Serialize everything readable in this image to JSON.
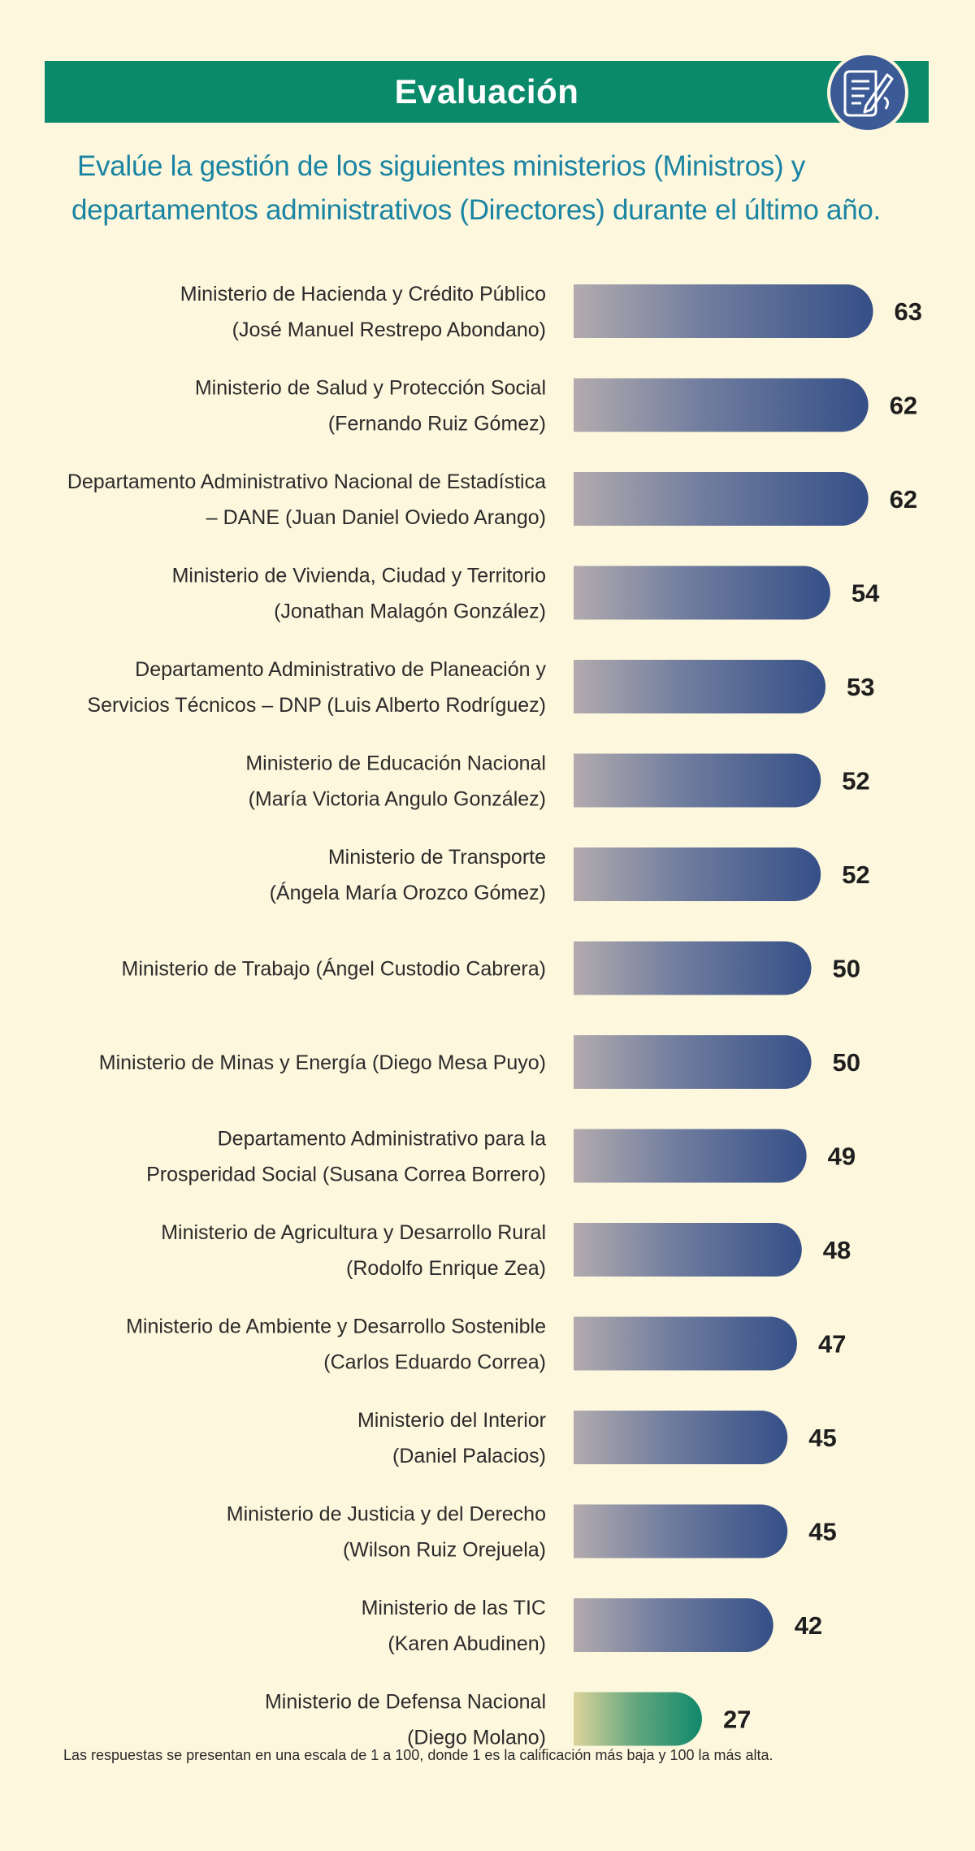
{
  "header": {
    "title": "Evaluación",
    "icon": "document-edit-icon"
  },
  "question": {
    "line1": "Evalúe la gestión de los siguientes ministerios (Ministros) y",
    "line2": "departamentos administrativos (Directores) durante el último año."
  },
  "colors": {
    "header_band": "#0a8a6b",
    "question_text": "#1a84a3",
    "bar_main": "#354f87",
    "bar_highlight": "#11896b",
    "background": "#fdf7dd",
    "icon_circle": "#3b5a96"
  },
  "chart_data": {
    "type": "bar",
    "orientation": "horizontal",
    "xlim": [
      0,
      100
    ],
    "grid": false,
    "legend": "none",
    "categories": [
      [
        "Ministerio de Hacienda y Crédito Público",
        "(José Manuel Restrepo Abondano)"
      ],
      [
        "Ministerio de Salud y Protección Social",
        "(Fernando Ruiz Gómez)"
      ],
      [
        "Departamento Administrativo Nacional de Estadística",
        "– DANE (Juan Daniel Oviedo Arango)"
      ],
      [
        "Ministerio de Vivienda, Ciudad y Territorio",
        "(Jonathan Malagón González)"
      ],
      [
        "Departamento Administrativo de Planeación y",
        "Servicios Técnicos – DNP (Luis Alberto Rodríguez)"
      ],
      [
        "Ministerio de Educación Nacional",
        "(María Victoria Angulo González)"
      ],
      [
        "Ministerio de Transporte",
        "(Ángela María Orozco Gómez)"
      ],
      [
        "Ministerio de Trabajo (Ángel Custodio Cabrera)"
      ],
      [
        "Ministerio de Minas y Energía (Diego Mesa Puyo)"
      ],
      [
        "Departamento Administrativo para la",
        "Prosperidad Social (Susana Correa Borrero)"
      ],
      [
        "Ministerio de Agricultura y Desarrollo Rural",
        "(Rodolfo Enrique Zea)"
      ],
      [
        "Ministerio de Ambiente y Desarrollo Sostenible",
        "(Carlos Eduardo Correa)"
      ],
      [
        "Ministerio del Interior",
        "(Daniel Palacios)"
      ],
      [
        "Ministerio de Justicia y del Derecho",
        "(Wilson Ruiz Orejuela)"
      ],
      [
        "Ministerio de las TIC",
        "(Karen Abudinen)"
      ],
      [
        "Ministerio de Defensa Nacional",
        "(Diego Molano)"
      ]
    ],
    "values": [
      63,
      62,
      62,
      54,
      53,
      52,
      52,
      50,
      50,
      49,
      48,
      47,
      45,
      45,
      42,
      27
    ],
    "highlight_index": 15
  },
  "footnote": "Las respuestas se presentan en una escala de 1 a 100, donde 1 es la calificación más baja y 100 la más alta."
}
